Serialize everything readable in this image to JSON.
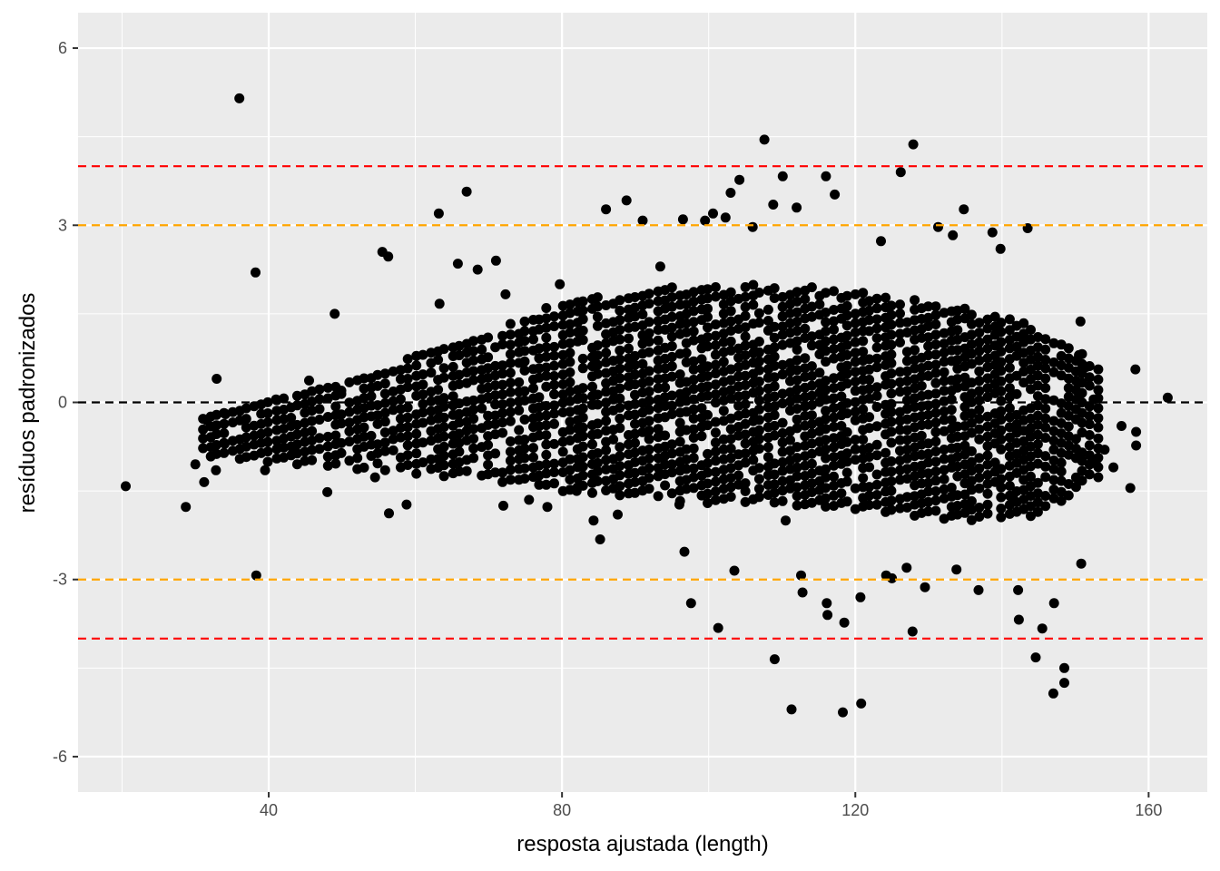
{
  "chart_data": {
    "type": "scatter",
    "title": "",
    "xlabel": "resposta ajustada (length)",
    "ylabel": "resíduos padronizados",
    "xlim": [
      14,
      168
    ],
    "ylim": [
      -6.6,
      6.6
    ],
    "x_ticks": [
      40,
      80,
      120,
      160
    ],
    "x_tick_labels": [
      "40",
      "80",
      "120",
      "160"
    ],
    "y_ticks": [
      -6,
      -3,
      0,
      3,
      6
    ],
    "y_tick_labels": [
      "-6",
      "-3",
      "0",
      "3",
      "6"
    ],
    "grid": true,
    "background": "#ebebeb",
    "reference_lines": [
      {
        "y": 4,
        "color": "#ff0000",
        "style": "dashed"
      },
      {
        "y": 3,
        "color": "#ffa500",
        "style": "dashed"
      },
      {
        "y": 0,
        "color": "#000000",
        "style": "dashed"
      },
      {
        "y": -3,
        "color": "#ffa500",
        "style": "dashed"
      },
      {
        "y": -4,
        "color": "#ff0000",
        "style": "dashed"
      }
    ],
    "point_color": "#000000",
    "bulk_band": {
      "note": "dense diagonal-striped cloud of points",
      "x_range": [
        31,
        153
      ],
      "lower_edge": [
        [
          31,
          -0.9
        ],
        [
          50,
          -1.1
        ],
        [
          70,
          -1.3
        ],
        [
          80,
          -1.5
        ],
        [
          100,
          -1.7
        ],
        [
          120,
          -1.8
        ],
        [
          135,
          -2.0
        ],
        [
          145,
          -1.9
        ],
        [
          153,
          -1.3
        ]
      ],
      "upper_edge": [
        [
          31,
          -0.2
        ],
        [
          40,
          0.1
        ],
        [
          50,
          0.3
        ],
        [
          60,
          0.8
        ],
        [
          70,
          1.2
        ],
        [
          80,
          1.7
        ],
        [
          90,
          1.9
        ],
        [
          100,
          2.0
        ],
        [
          110,
          2.0
        ],
        [
          120,
          1.9
        ],
        [
          130,
          1.7
        ],
        [
          140,
          1.5
        ],
        [
          150,
          1.0
        ],
        [
          153,
          0.6
        ]
      ]
    },
    "points": [
      [
        20.5,
        -1.42
      ],
      [
        28.7,
        -1.77
      ],
      [
        30,
        -1.05
      ],
      [
        31.2,
        -1.35
      ],
      [
        31.5,
        -0.3
      ],
      [
        32.8,
        -1.15
      ],
      [
        32.9,
        0.4
      ],
      [
        34,
        -0.7
      ],
      [
        34.1,
        -0.2
      ],
      [
        36,
        5.15
      ],
      [
        38.2,
        2.2
      ],
      [
        38.3,
        -2.93
      ],
      [
        39.5,
        -1.15
      ],
      [
        41,
        0.05
      ],
      [
        45.5,
        0.37
      ],
      [
        48,
        -1.52
      ],
      [
        49,
        1.5
      ],
      [
        49.9,
        0.2
      ],
      [
        54.5,
        -1.27
      ],
      [
        55.5,
        2.55
      ],
      [
        56.3,
        2.47
      ],
      [
        56.4,
        -1.88
      ],
      [
        58.8,
        -1.73
      ],
      [
        63.2,
        3.2
      ],
      [
        63.3,
        1.67
      ],
      [
        65.8,
        2.35
      ],
      [
        67,
        3.57
      ],
      [
        68.5,
        2.25
      ],
      [
        71,
        2.4
      ],
      [
        72,
        -1.75
      ],
      [
        72.3,
        1.83
      ],
      [
        75.5,
        -1.65
      ],
      [
        78,
        -1.77
      ],
      [
        79.7,
        2.0
      ],
      [
        82,
        -1.5
      ],
      [
        84.3,
        -2.0
      ],
      [
        85.2,
        -2.32
      ],
      [
        86,
        3.27
      ],
      [
        87.6,
        -1.9
      ],
      [
        88.8,
        3.42
      ],
      [
        91,
        3.08
      ],
      [
        93.4,
        2.3
      ],
      [
        96,
        -1.73
      ],
      [
        96.5,
        3.1
      ],
      [
        96.7,
        -2.53
      ],
      [
        97.6,
        -3.4
      ],
      [
        99.5,
        3.08
      ],
      [
        100.6,
        3.2
      ],
      [
        101.3,
        -3.82
      ],
      [
        102.3,
        3.13
      ],
      [
        103,
        3.55
      ],
      [
        103.5,
        -2.85
      ],
      [
        104.2,
        3.77
      ],
      [
        106,
        2.97
      ],
      [
        107.6,
        4.45
      ],
      [
        108.8,
        3.35
      ],
      [
        109,
        -4.35
      ],
      [
        110.1,
        3.83
      ],
      [
        110.5,
        -2.0
      ],
      [
        111.3,
        -5.2
      ],
      [
        112,
        3.3
      ],
      [
        112.6,
        -2.93
      ],
      [
        112.8,
        -3.22
      ],
      [
        116,
        3.83
      ],
      [
        116.1,
        -3.4
      ],
      [
        116.2,
        -3.6
      ],
      [
        117.2,
        3.52
      ],
      [
        118.3,
        -5.25
      ],
      [
        118.5,
        -3.73
      ],
      [
        120.7,
        -3.3
      ],
      [
        120.8,
        -5.1
      ],
      [
        123.5,
        2.73
      ],
      [
        124.2,
        -2.93
      ],
      [
        125,
        -2.98
      ],
      [
        126.2,
        3.9
      ],
      [
        127,
        -2.8
      ],
      [
        127.8,
        -3.88
      ],
      [
        127.9,
        4.37
      ],
      [
        129.5,
        -3.13
      ],
      [
        131.3,
        2.97
      ],
      [
        133.3,
        2.83
      ],
      [
        133.8,
        -2.83
      ],
      [
        134.8,
        3.27
      ],
      [
        136.8,
        -3.18
      ],
      [
        138.7,
        2.88
      ],
      [
        139.8,
        2.6
      ],
      [
        141.5,
        -1.6
      ],
      [
        142.2,
        -3.18
      ],
      [
        142.3,
        -3.68
      ],
      [
        143.5,
        2.95
      ],
      [
        144.6,
        -4.32
      ],
      [
        145.5,
        -3.83
      ],
      [
        147,
        -4.93
      ],
      [
        147.1,
        -3.4
      ],
      [
        148.5,
        -4.5
      ],
      [
        148.5,
        -4.75
      ],
      [
        150.7,
        1.37
      ],
      [
        150.8,
        -2.73
      ],
      [
        150.5,
        0.8
      ],
      [
        151.5,
        0.6
      ],
      [
        152.5,
        0.05
      ],
      [
        152.8,
        -1.0
      ],
      [
        154,
        -0.8
      ],
      [
        155.2,
        -1.1
      ],
      [
        156.3,
        -0.4
      ],
      [
        157.5,
        -1.45
      ],
      [
        158.2,
        0.56
      ],
      [
        158.3,
        -0.5
      ],
      [
        158.3,
        -0.73
      ],
      [
        162.6,
        0.08
      ]
    ]
  }
}
